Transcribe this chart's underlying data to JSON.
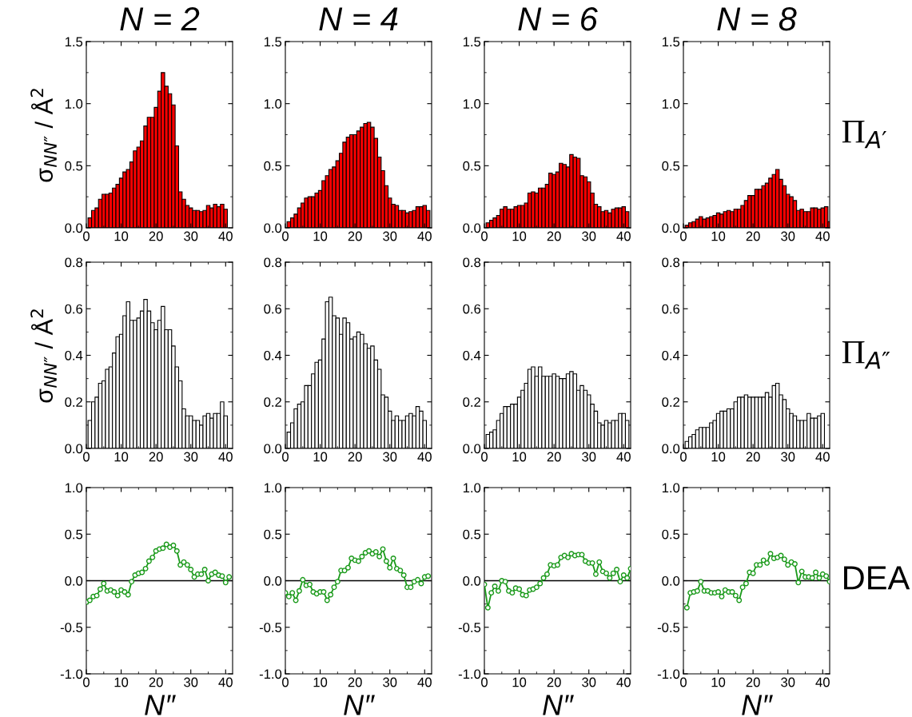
{
  "chart_data": [
    {
      "type": "bar",
      "title": "N = 2",
      "ylabel": "σ$_{NN″}$ / Å$^{2}$",
      "color": "#ff0000",
      "xlim": [
        0,
        42
      ],
      "xticks": [
        0,
        10,
        20,
        30,
        40
      ],
      "ylim": [
        0,
        1.5
      ],
      "yticks": [
        {
          "value": 0,
          "label": "0.0"
        },
        {
          "value": 0.5,
          "label": "0.5"
        },
        {
          "value": 1.0,
          "label": "1.0"
        },
        {
          "value": 1.5,
          "label": "1.5"
        }
      ],
      "x": [
        1,
        2,
        3,
        4,
        5,
        6,
        7,
        8,
        9,
        10,
        11,
        12,
        13,
        14,
        15,
        16,
        17,
        18,
        19,
        20,
        21,
        22,
        23,
        24,
        25,
        26,
        27,
        28,
        29,
        30,
        31,
        32,
        33,
        34,
        35,
        36,
        37,
        38,
        39,
        40
      ],
      "values": [
        0.08,
        0.14,
        0.16,
        0.23,
        0.27,
        0.27,
        0.28,
        0.32,
        0.35,
        0.4,
        0.45,
        0.47,
        0.53,
        0.62,
        0.65,
        0.7,
        0.82,
        0.89,
        0.89,
        0.97,
        1.1,
        1.25,
        1.14,
        1.08,
        0.99,
        0.66,
        0.29,
        0.23,
        0.18,
        0.16,
        0.14,
        0.14,
        0.13,
        0.14,
        0.18,
        0.16,
        0.19,
        0.17,
        0.19,
        0.15
      ]
    },
    {
      "type": "bar",
      "title": "N = 4",
      "color": "#ff0000",
      "xlim": [
        0,
        42
      ],
      "xticks": [
        0,
        10,
        20,
        30,
        40
      ],
      "ylim": [
        0,
        1.5
      ],
      "yticks": [
        {
          "value": 0,
          "label": "0.0"
        },
        {
          "value": 0.5,
          "label": "0.5"
        },
        {
          "value": 1.0,
          "label": "1.0"
        },
        {
          "value": 1.5,
          "label": "1.5"
        }
      ],
      "x": [
        1,
        2,
        3,
        4,
        5,
        6,
        7,
        8,
        9,
        10,
        11,
        12,
        13,
        14,
        15,
        16,
        17,
        18,
        19,
        20,
        21,
        22,
        23,
        24,
        25,
        26,
        27,
        28,
        29,
        30,
        31,
        32,
        33,
        34,
        35,
        36,
        37,
        38,
        39,
        40,
        41
      ],
      "values": [
        0.05,
        0.08,
        0.11,
        0.16,
        0.2,
        0.24,
        0.25,
        0.25,
        0.28,
        0.3,
        0.38,
        0.42,
        0.47,
        0.49,
        0.54,
        0.6,
        0.69,
        0.73,
        0.75,
        0.75,
        0.78,
        0.81,
        0.84,
        0.85,
        0.81,
        0.72,
        0.57,
        0.46,
        0.34,
        0.24,
        0.19,
        0.18,
        0.14,
        0.14,
        0.12,
        0.13,
        0.14,
        0.17,
        0.17,
        0.18,
        0.14
      ]
    },
    {
      "type": "bar",
      "title": "N = 6",
      "color": "#ff0000",
      "xlim": [
        0,
        42
      ],
      "xticks": [
        0,
        10,
        20,
        30,
        40
      ],
      "ylim": [
        0,
        1.5
      ],
      "yticks": [
        {
          "value": 0,
          "label": "0.0"
        },
        {
          "value": 0.5,
          "label": "0.5"
        },
        {
          "value": 1.0,
          "label": "1.0"
        },
        {
          "value": 1.5,
          "label": "1.5"
        }
      ],
      "x": [
        1,
        2,
        3,
        4,
        5,
        6,
        7,
        8,
        9,
        10,
        11,
        12,
        13,
        14,
        15,
        16,
        17,
        18,
        19,
        20,
        21,
        22,
        23,
        24,
        25,
        26,
        27,
        28,
        29,
        30,
        31,
        32,
        33,
        34,
        35,
        36,
        37,
        38,
        39,
        40,
        41
      ],
      "values": [
        0.04,
        0.06,
        0.08,
        0.1,
        0.15,
        0.17,
        0.15,
        0.15,
        0.17,
        0.18,
        0.18,
        0.2,
        0.28,
        0.29,
        0.28,
        0.32,
        0.32,
        0.35,
        0.44,
        0.43,
        0.45,
        0.52,
        0.51,
        0.49,
        0.59,
        0.57,
        0.56,
        0.42,
        0.41,
        0.37,
        0.28,
        0.19,
        0.17,
        0.13,
        0.14,
        0.12,
        0.15,
        0.16,
        0.16,
        0.17,
        0.13
      ]
    },
    {
      "type": "bar",
      "title": "N = 8",
      "annotations": [
        "Π$_{A′}$"
      ],
      "color": "#ff0000",
      "xlim": [
        0,
        42
      ],
      "xticks": [
        0,
        10,
        20,
        30,
        40
      ],
      "ylim": [
        0,
        1.5
      ],
      "yticks": [
        {
          "value": 0,
          "label": "0.0"
        },
        {
          "value": 0.5,
          "label": "0.5"
        },
        {
          "value": 1.0,
          "label": "1.0"
        },
        {
          "value": 1.5,
          "label": "1.5"
        }
      ],
      "x": [
        1,
        2,
        3,
        4,
        5,
        6,
        7,
        8,
        9,
        10,
        11,
        12,
        13,
        14,
        15,
        16,
        17,
        18,
        19,
        20,
        21,
        22,
        23,
        24,
        25,
        26,
        27,
        28,
        29,
        30,
        31,
        32,
        33,
        34,
        35,
        36,
        37,
        38,
        39,
        40,
        41,
        42
      ],
      "values": [
        0.02,
        0.04,
        0.05,
        0.07,
        0.09,
        0.07,
        0.08,
        0.09,
        0.1,
        0.12,
        0.11,
        0.13,
        0.14,
        0.13,
        0.15,
        0.15,
        0.18,
        0.22,
        0.26,
        0.26,
        0.31,
        0.31,
        0.34,
        0.36,
        0.4,
        0.43,
        0.47,
        0.39,
        0.34,
        0.27,
        0.25,
        0.22,
        0.14,
        0.15,
        0.13,
        0.13,
        0.16,
        0.16,
        0.15,
        0.16,
        0.17,
        0.05
      ]
    },
    {
      "type": "bar",
      "ylabel": "σ$_{NN″}$ / Å$^{2}$",
      "color": "#ffffff",
      "xlim": [
        0,
        42
      ],
      "xticks": [
        0,
        10,
        20,
        30,
        40
      ],
      "ylim": [
        0,
        0.8
      ],
      "yticks": [
        {
          "value": 0,
          "label": "0.0"
        },
        {
          "value": 0.2,
          "label": "0.2"
        },
        {
          "value": 0.4,
          "label": "0.4"
        },
        {
          "value": 0.6,
          "label": "0.6"
        },
        {
          "value": 0.8,
          "label": "0.8"
        }
      ],
      "x": [
        1,
        2,
        3,
        4,
        5,
        6,
        7,
        8,
        9,
        10,
        11,
        12,
        13,
        14,
        15,
        16,
        17,
        18,
        19,
        20,
        21,
        22,
        23,
        24,
        25,
        26,
        27,
        28,
        29,
        30,
        31,
        32,
        33,
        34,
        35,
        36,
        37,
        38,
        39,
        40
      ],
      "values": [
        0.12,
        0.2,
        0.22,
        0.28,
        0.29,
        0.34,
        0.35,
        0.41,
        0.48,
        0.49,
        0.57,
        0.63,
        0.55,
        0.55,
        0.56,
        0.59,
        0.64,
        0.59,
        0.54,
        0.51,
        0.55,
        0.61,
        0.51,
        0.51,
        0.44,
        0.35,
        0.29,
        0.17,
        0.14,
        0.14,
        0.12,
        0.12,
        0.1,
        0.14,
        0.15,
        0.13,
        0.15,
        0.15,
        0.2,
        0.14
      ]
    },
    {
      "type": "bar",
      "color": "#ffffff",
      "xlim": [
        0,
        42
      ],
      "xticks": [
        0,
        10,
        20,
        30,
        40
      ],
      "ylim": [
        0,
        0.8
      ],
      "yticks": [
        {
          "value": 0,
          "label": "0.0"
        },
        {
          "value": 0.2,
          "label": "0.2"
        },
        {
          "value": 0.4,
          "label": "0.4"
        },
        {
          "value": 0.6,
          "label": "0.6"
        },
        {
          "value": 0.8,
          "label": "0.8"
        }
      ],
      "x": [
        1,
        2,
        3,
        4,
        5,
        6,
        7,
        8,
        9,
        10,
        11,
        12,
        13,
        14,
        15,
        16,
        17,
        18,
        19,
        20,
        21,
        22,
        23,
        24,
        25,
        26,
        27,
        28,
        29,
        30,
        31,
        32,
        33,
        34,
        35,
        36,
        37,
        38,
        39,
        40
      ],
      "values": [
        0.07,
        0.11,
        0.17,
        0.19,
        0.2,
        0.27,
        0.27,
        0.32,
        0.37,
        0.38,
        0.47,
        0.63,
        0.65,
        0.57,
        0.56,
        0.49,
        0.56,
        0.54,
        0.47,
        0.48,
        0.5,
        0.49,
        0.45,
        0.43,
        0.44,
        0.38,
        0.34,
        0.23,
        0.22,
        0.16,
        0.12,
        0.14,
        0.12,
        0.12,
        0.14,
        0.15,
        0.14,
        0.18,
        0.16,
        0.12
      ]
    },
    {
      "type": "bar",
      "color": "#ffffff",
      "xlim": [
        0,
        42
      ],
      "xticks": [
        0,
        10,
        20,
        30,
        40
      ],
      "ylim": [
        0,
        0.8
      ],
      "yticks": [
        {
          "value": 0,
          "label": "0.0"
        },
        {
          "value": 0.2,
          "label": "0.2"
        },
        {
          "value": 0.4,
          "label": "0.4"
        },
        {
          "value": 0.6,
          "label": "0.6"
        },
        {
          "value": 0.8,
          "label": "0.8"
        }
      ],
      "x": [
        1,
        2,
        3,
        4,
        5,
        6,
        7,
        8,
        9,
        10,
        11,
        12,
        13,
        14,
        15,
        16,
        17,
        18,
        19,
        20,
        21,
        22,
        23,
        24,
        25,
        26,
        27,
        28,
        29,
        30,
        31,
        32,
        33,
        34,
        35,
        36,
        37,
        38,
        39,
        40,
        41
      ],
      "values": [
        0.06,
        0.07,
        0.08,
        0.12,
        0.15,
        0.18,
        0.18,
        0.19,
        0.19,
        0.22,
        0.25,
        0.28,
        0.34,
        0.35,
        0.31,
        0.35,
        0.31,
        0.31,
        0.31,
        0.32,
        0.31,
        0.3,
        0.3,
        0.32,
        0.33,
        0.32,
        0.25,
        0.27,
        0.25,
        0.23,
        0.19,
        0.16,
        0.11,
        0.1,
        0.12,
        0.11,
        0.12,
        0.12,
        0.15,
        0.15,
        0.12
      ]
    },
    {
      "type": "bar",
      "annotations": [
        "Π$_{A″}$"
      ],
      "color": "#ffffff",
      "xlim": [
        0,
        42
      ],
      "xticks": [
        0,
        10,
        20,
        30,
        40
      ],
      "ylim": [
        0,
        0.8
      ],
      "yticks": [
        {
          "value": 0,
          "label": "0.0"
        },
        {
          "value": 0.2,
          "label": "0.2"
        },
        {
          "value": 0.4,
          "label": "0.4"
        },
        {
          "value": 0.6,
          "label": "0.6"
        },
        {
          "value": 0.8,
          "label": "0.8"
        }
      ],
      "x": [
        1,
        2,
        3,
        4,
        5,
        6,
        7,
        8,
        9,
        10,
        11,
        12,
        13,
        14,
        15,
        16,
        17,
        18,
        19,
        20,
        21,
        22,
        23,
        24,
        25,
        26,
        27,
        28,
        29,
        30,
        31,
        32,
        33,
        34,
        35,
        36,
        37,
        38,
        39,
        40
      ],
      "values": [
        0.03,
        0.05,
        0.06,
        0.08,
        0.09,
        0.09,
        0.09,
        0.11,
        0.12,
        0.15,
        0.16,
        0.16,
        0.17,
        0.17,
        0.2,
        0.22,
        0.22,
        0.23,
        0.22,
        0.22,
        0.22,
        0.22,
        0.22,
        0.24,
        0.22,
        0.27,
        0.28,
        0.23,
        0.21,
        0.17,
        0.15,
        0.14,
        0.12,
        0.12,
        0.12,
        0.15,
        0.13,
        0.13,
        0.14,
        0.15
      ]
    },
    {
      "type": "line",
      "xlabel": "N″",
      "color": "#1a9a1a",
      "marker": "circle",
      "line_style": "solid",
      "ref_lines": [
        {
          "axis": "y",
          "value": 0,
          "color": "#000000"
        }
      ],
      "xlim": [
        0,
        42
      ],
      "xticks": [
        0,
        10,
        20,
        30,
        40
      ],
      "ylim": [
        -1,
        1
      ],
      "yticks": [
        {
          "value": -1,
          "label": "-1.0"
        },
        {
          "value": -0.5,
          "label": "-0.5"
        },
        {
          "value": 0,
          "label": "0.0"
        },
        {
          "value": 0.5,
          "label": "0.5"
        },
        {
          "value": 1,
          "label": "1.0"
        }
      ],
      "x": [
        0,
        1,
        2,
        3,
        4,
        5,
        6,
        7,
        8,
        9,
        10,
        11,
        12,
        13,
        14,
        15,
        16,
        17,
        18,
        19,
        20,
        21,
        22,
        23,
        24,
        25,
        26,
        27,
        28,
        29,
        30,
        31,
        32,
        33,
        34,
        35,
        36,
        37,
        38,
        39,
        40,
        41
      ],
      "values": [
        -0.23,
        -0.21,
        -0.17,
        -0.16,
        -0.09,
        -0.03,
        -0.11,
        -0.1,
        -0.12,
        -0.16,
        -0.1,
        -0.12,
        -0.15,
        -0.01,
        0.06,
        0.08,
        0.09,
        0.13,
        0.21,
        0.25,
        0.32,
        0.34,
        0.35,
        0.39,
        0.36,
        0.38,
        0.32,
        0.17,
        0.2,
        0.17,
        0.12,
        0.04,
        0.07,
        0.07,
        0.12,
        0.0,
        0.07,
        0.09,
        0.06,
        0.05,
        -0.02,
        0.04
      ]
    },
    {
      "type": "line",
      "xlabel": "N″",
      "color": "#1a9a1a",
      "marker": "circle",
      "line_style": "solid",
      "ref_lines": [
        {
          "axis": "y",
          "value": 0,
          "color": "#000000"
        }
      ],
      "xlim": [
        0,
        42
      ],
      "xticks": [
        0,
        10,
        20,
        30,
        40
      ],
      "ylim": [
        -1,
        1
      ],
      "yticks": [
        {
          "value": -1,
          "label": "-1.0"
        },
        {
          "value": -0.5,
          "label": "-0.5"
        },
        {
          "value": 0,
          "label": "0.0"
        },
        {
          "value": 0.5,
          "label": "0.5"
        },
        {
          "value": 1,
          "label": "1.0"
        }
      ],
      "x": [
        0,
        1,
        2,
        3,
        4,
        5,
        6,
        7,
        8,
        9,
        10,
        11,
        12,
        13,
        14,
        15,
        16,
        17,
        18,
        19,
        20,
        21,
        22,
        23,
        24,
        25,
        26,
        27,
        28,
        29,
        30,
        31,
        32,
        33,
        34,
        35,
        36,
        37,
        38,
        39,
        40,
        41
      ],
      "values": [
        -0.13,
        -0.17,
        -0.13,
        -0.21,
        -0.11,
        0.01,
        -0.05,
        -0.04,
        -0.12,
        -0.14,
        -0.12,
        -0.12,
        -0.21,
        -0.15,
        -0.07,
        -0.01,
        0.11,
        0.11,
        0.14,
        0.24,
        0.22,
        0.21,
        0.26,
        0.3,
        0.32,
        0.29,
        0.31,
        0.26,
        0.34,
        0.21,
        0.14,
        0.24,
        0.13,
        0.11,
        0.06,
        -0.07,
        -0.07,
        -0.01,
        0.01,
        -0.03,
        0.04,
        0.05
      ]
    },
    {
      "type": "line",
      "xlabel": "N″",
      "color": "#1a9a1a",
      "marker": "circle",
      "line_style": "solid",
      "ref_lines": [
        {
          "axis": "y",
          "value": 0,
          "color": "#000000"
        }
      ],
      "xlim": [
        0,
        42
      ],
      "xticks": [
        0,
        10,
        20,
        30,
        40
      ],
      "ylim": [
        -1,
        1
      ],
      "yticks": [
        {
          "value": -1,
          "label": "-1.0"
        },
        {
          "value": -0.5,
          "label": "-0.5"
        },
        {
          "value": 0,
          "label": "0.0"
        },
        {
          "value": 0.5,
          "label": "0.5"
        },
        {
          "value": 1,
          "label": "1.0"
        }
      ],
      "x": [
        0,
        1,
        2,
        3,
        4,
        5,
        6,
        7,
        8,
        9,
        10,
        11,
        12,
        13,
        14,
        15,
        16,
        17,
        18,
        19,
        20,
        21,
        22,
        23,
        24,
        25,
        26,
        27,
        28,
        29,
        30,
        31,
        32,
        33,
        34,
        35,
        36,
        37,
        38,
        39,
        40,
        41,
        42
      ],
      "values": [
        -0.04,
        -0.29,
        -0.13,
        -0.06,
        -0.11,
        0.0,
        -0.01,
        -0.11,
        -0.13,
        -0.08,
        -0.09,
        -0.15,
        -0.16,
        -0.1,
        -0.09,
        -0.07,
        -0.03,
        0.03,
        0.07,
        0.17,
        0.16,
        0.17,
        0.25,
        0.27,
        0.25,
        0.29,
        0.27,
        0.28,
        0.28,
        0.21,
        0.19,
        0.19,
        0.07,
        0.2,
        0.1,
        0.08,
        0.03,
        0.08,
        0.12,
        -0.01,
        0.06,
        0.03,
        0.13
      ]
    },
    {
      "type": "line",
      "xlabel": "N″",
      "annotations": [
        "DEA"
      ],
      "color": "#1a9a1a",
      "marker": "circle",
      "line_style": "solid",
      "ref_lines": [
        {
          "axis": "y",
          "value": 0,
          "color": "#000000"
        }
      ],
      "xlim": [
        0,
        42
      ],
      "xticks": [
        0,
        10,
        20,
        30,
        40
      ],
      "ylim": [
        -1,
        1
      ],
      "yticks": [
        {
          "value": -1,
          "label": "-1.0"
        },
        {
          "value": -0.5,
          "label": "-0.5"
        },
        {
          "value": 0,
          "label": "0.0"
        },
        {
          "value": 0.5,
          "label": "0.5"
        },
        {
          "value": 1,
          "label": "1.0"
        }
      ],
      "x": [
        1,
        2,
        3,
        4,
        5,
        6,
        7,
        8,
        9,
        10,
        11,
        12,
        13,
        14,
        15,
        16,
        17,
        18,
        19,
        20,
        21,
        22,
        23,
        24,
        25,
        26,
        27,
        28,
        29,
        30,
        31,
        32,
        33,
        34,
        35,
        36,
        37,
        38,
        39,
        40,
        41,
        42
      ],
      "values": [
        -0.29,
        -0.13,
        -0.12,
        -0.11,
        -0.01,
        -0.11,
        -0.11,
        -0.13,
        -0.13,
        -0.12,
        -0.17,
        -0.1,
        -0.12,
        -0.12,
        -0.16,
        -0.21,
        -0.07,
        -0.03,
        0.09,
        0.08,
        0.17,
        0.17,
        0.22,
        0.19,
        0.29,
        0.24,
        0.25,
        0.27,
        0.23,
        0.17,
        0.2,
        0.18,
        -0.02,
        0.1,
        0.04,
        0.04,
        0.03,
        0.09,
        0.03,
        0.07,
        0.05,
        -0.01
      ]
    }
  ]
}
